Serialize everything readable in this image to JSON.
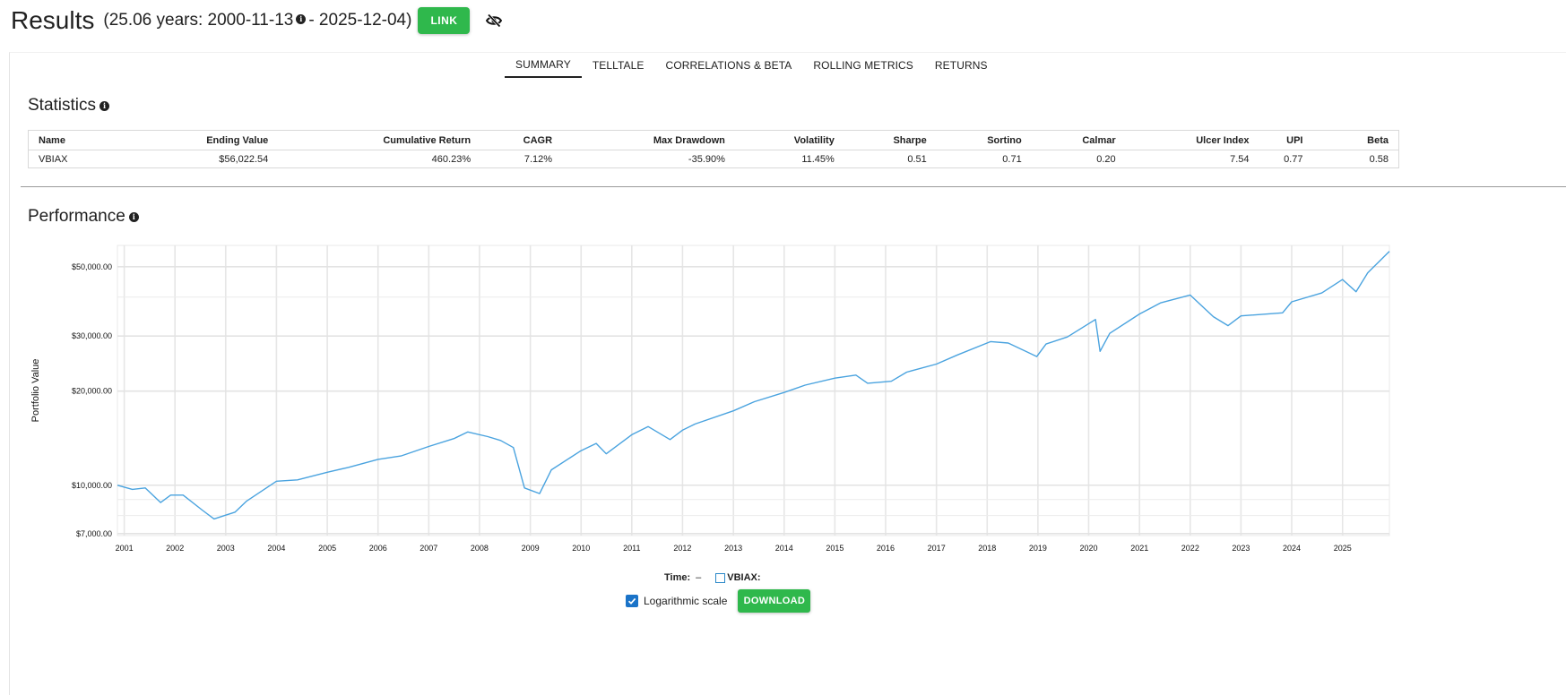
{
  "header": {
    "title": "Results",
    "range_prefix": "(25.06 years: 2000-11-13",
    "range_suffix": "- 2025-12-04)",
    "link_label": "LINK"
  },
  "tabs": [
    {
      "label": "SUMMARY",
      "active": true
    },
    {
      "label": "TELLTALE",
      "active": false
    },
    {
      "label": "CORRELATIONS & BETA",
      "active": false
    },
    {
      "label": "ROLLING METRICS",
      "active": false
    },
    {
      "label": "RETURNS",
      "active": false
    }
  ],
  "statistics": {
    "title": "Statistics",
    "columns": [
      "Name",
      "Ending Value",
      "Cumulative Return",
      "CAGR",
      "Max Drawdown",
      "Volatility",
      "Sharpe",
      "Sortino",
      "Calmar",
      "Ulcer Index",
      "UPI",
      "Beta"
    ],
    "rows": [
      [
        "VBIAX",
        "$56,022.54",
        "460.23%",
        "7.12%",
        "-35.90%",
        "11.45%",
        "0.51",
        "0.71",
        "0.20",
        "7.54",
        "0.77",
        "0.58"
      ]
    ]
  },
  "performance": {
    "title": "Performance",
    "legend_time_label": "Time:",
    "legend_time_value": "–",
    "legend_series_label": "VBIAX:",
    "log_scale_label": "Logarithmic scale",
    "log_scale_checked": true,
    "download_label": "DOWNLOAD"
  },
  "colors": {
    "accent_green": "#2fb84c",
    "line_blue": "#4aa3df",
    "checkbox_blue": "#1a73c8"
  },
  "chart_data": {
    "type": "line",
    "title": "",
    "xlabel": "",
    "ylabel": "Portfolio Value",
    "y_scale": "log",
    "ylim": [
      6900,
      58500
    ],
    "xlim": [
      "2000-11-13",
      "2025-12-04"
    ],
    "y_ticks": [
      {
        "value": 7000,
        "label": "$7,000.00"
      },
      {
        "value": 10000,
        "label": "$10,000.00"
      },
      {
        "value": 20000,
        "label": "$20,000.00"
      },
      {
        "value": 30000,
        "label": "$30,000.00"
      },
      {
        "value": 50000,
        "label": "$50,000.00"
      }
    ],
    "x_ticks": [
      "2001",
      "2002",
      "2003",
      "2004",
      "2005",
      "2006",
      "2007",
      "2008",
      "2009",
      "2010",
      "2011",
      "2012",
      "2013",
      "2014",
      "2015",
      "2016",
      "2017",
      "2018",
      "2019",
      "2020",
      "2021",
      "2022",
      "2023",
      "2024",
      "2025"
    ],
    "grid": true,
    "series": [
      {
        "name": "VBIAX",
        "x": [
          "2000-11-13",
          "2001-03-01",
          "2001-06-01",
          "2001-09-20",
          "2001-12-01",
          "2002-03-01",
          "2002-07-20",
          "2002-10-09",
          "2003-03-10",
          "2003-06-01",
          "2004-01-01",
          "2004-06-01",
          "2005-01-01",
          "2005-06-01",
          "2006-01-01",
          "2006-06-15",
          "2007-01-01",
          "2007-07-01",
          "2007-10-09",
          "2008-03-01",
          "2008-06-01",
          "2008-09-01",
          "2008-11-20",
          "2009-03-09",
          "2009-06-01",
          "2010-01-01",
          "2010-04-20",
          "2010-07-01",
          "2011-01-01",
          "2011-04-29",
          "2011-10-03",
          "2012-01-01",
          "2012-04-01",
          "2013-01-01",
          "2013-06-01",
          "2014-01-01",
          "2014-06-01",
          "2015-01-01",
          "2015-06-01",
          "2015-08-25",
          "2016-02-11",
          "2016-06-01",
          "2017-01-01",
          "2017-06-01",
          "2018-01-26",
          "2018-06-01",
          "2018-12-24",
          "2019-03-01",
          "2019-08-01",
          "2020-02-19",
          "2020-03-23",
          "2020-06-01",
          "2021-01-01",
          "2021-06-01",
          "2021-12-31",
          "2022-06-16",
          "2022-09-30",
          "2023-01-01",
          "2023-10-27",
          "2024-01-01",
          "2024-08-05",
          "2025-01-01",
          "2025-04-08",
          "2025-07-01",
          "2025-12-04"
        ],
        "values": [
          10000,
          9700,
          9800,
          8800,
          9300,
          9300,
          8300,
          7800,
          8200,
          8900,
          10300,
          10400,
          11000,
          11400,
          12100,
          12400,
          13300,
          14100,
          14800,
          14300,
          13900,
          13200,
          9800,
          9400,
          11200,
          12900,
          13600,
          12600,
          14500,
          15400,
          14000,
          15000,
          15700,
          17300,
          18500,
          19800,
          20900,
          22000,
          22500,
          21200,
          21500,
          23000,
          24400,
          26100,
          28800,
          28500,
          25800,
          28300,
          29800,
          33900,
          26800,
          30600,
          35300,
          38300,
          40600,
          34600,
          32400,
          34800,
          35600,
          38600,
          41200,
          45500,
          41600,
          47800,
          56022.54
        ]
      }
    ]
  }
}
